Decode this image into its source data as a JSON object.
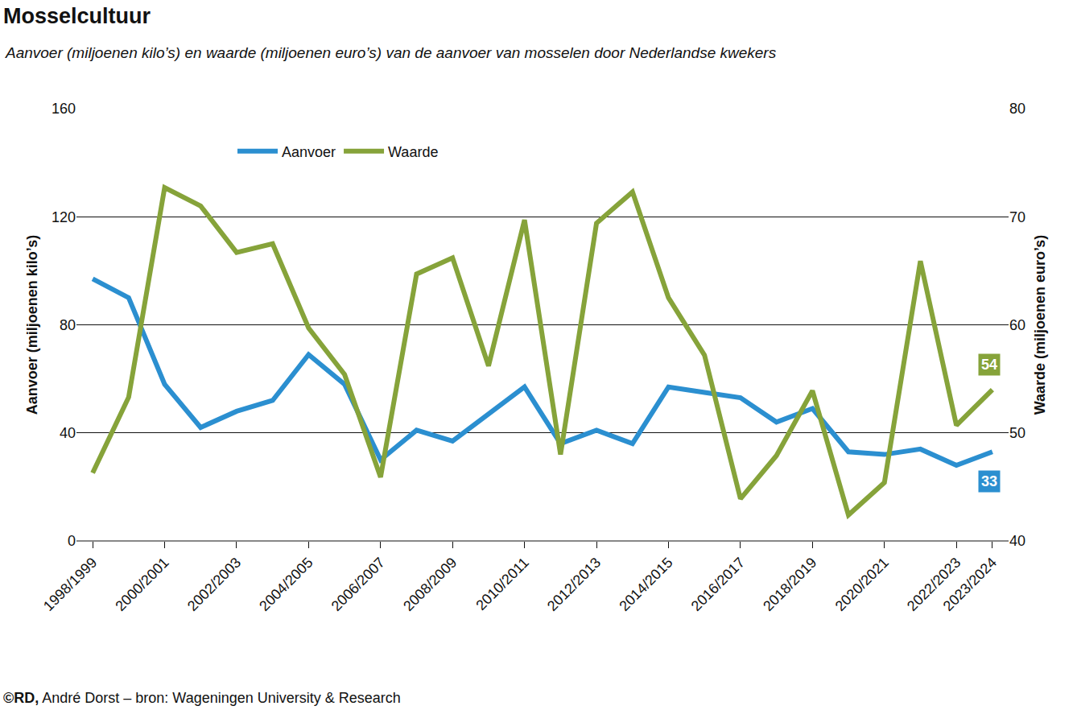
{
  "chart_data": {
    "type": "line",
    "title": "Mosselcultuur",
    "subtitle": "Aanvoer (miljoenen kilo’s) en waarde (miljoenen euro’s) van de aanvoer van mosselen door Nederlandse kwekers",
    "source": "©RD, André Dorst – bron: Wageningen University & Research",
    "categories": [
      "1998/1999",
      null,
      "2000/2001",
      null,
      "2002/2003",
      null,
      "2004/2005",
      null,
      "2006/2007",
      null,
      "2008/2009",
      null,
      "2010/2011",
      null,
      "2012/2013",
      null,
      "2014/2015",
      null,
      "2016/2017",
      null,
      "2018/2019",
      null,
      "2020/2021",
      null,
      "2022/2023",
      "2023/2024"
    ],
    "series": [
      {
        "name": "Aanvoer",
        "color": "#2b8fd0",
        "values": [
          97,
          90,
          58,
          42,
          48,
          52,
          69,
          58,
          30,
          41,
          37,
          47,
          57,
          36,
          41,
          36,
          57,
          55,
          53,
          44,
          49,
          33,
          32,
          34,
          28,
          33
        ]
      },
      {
        "name": "Waarde",
        "color": "#86a33a",
        "axis": "y2",
        "values": [
          46.3,
          53.3,
          72.7,
          71.0,
          66.7,
          67.5,
          59.7,
          55.4,
          45.9,
          64.7,
          66.2,
          56.2,
          69.7,
          48.0,
          69.4,
          72.3,
          62.5,
          57.2,
          43.9,
          47.9,
          53.9,
          42.4,
          45.4,
          65.9,
          50.7,
          54
        ]
      }
    ],
    "y_label": "Aanvoer (miljoenen kilo’s)",
    "y2_label": "Waarde (miljoenen euro’s)",
    "ylim": [
      0,
      160
    ],
    "yticks": [
      0,
      40,
      80,
      120,
      160
    ],
    "y2lim": [
      40,
      80
    ],
    "y2ticks": [
      40,
      50,
      60,
      70,
      80
    ],
    "grid": true,
    "legend": "top-left",
    "annotations": [
      {
        "text": "54",
        "x": "2023/2024",
        "y": 54,
        "axis": "y2"
      },
      {
        "text": "33",
        "x": "2023/2024",
        "y": 33,
        "axis": "y"
      }
    ]
  }
}
